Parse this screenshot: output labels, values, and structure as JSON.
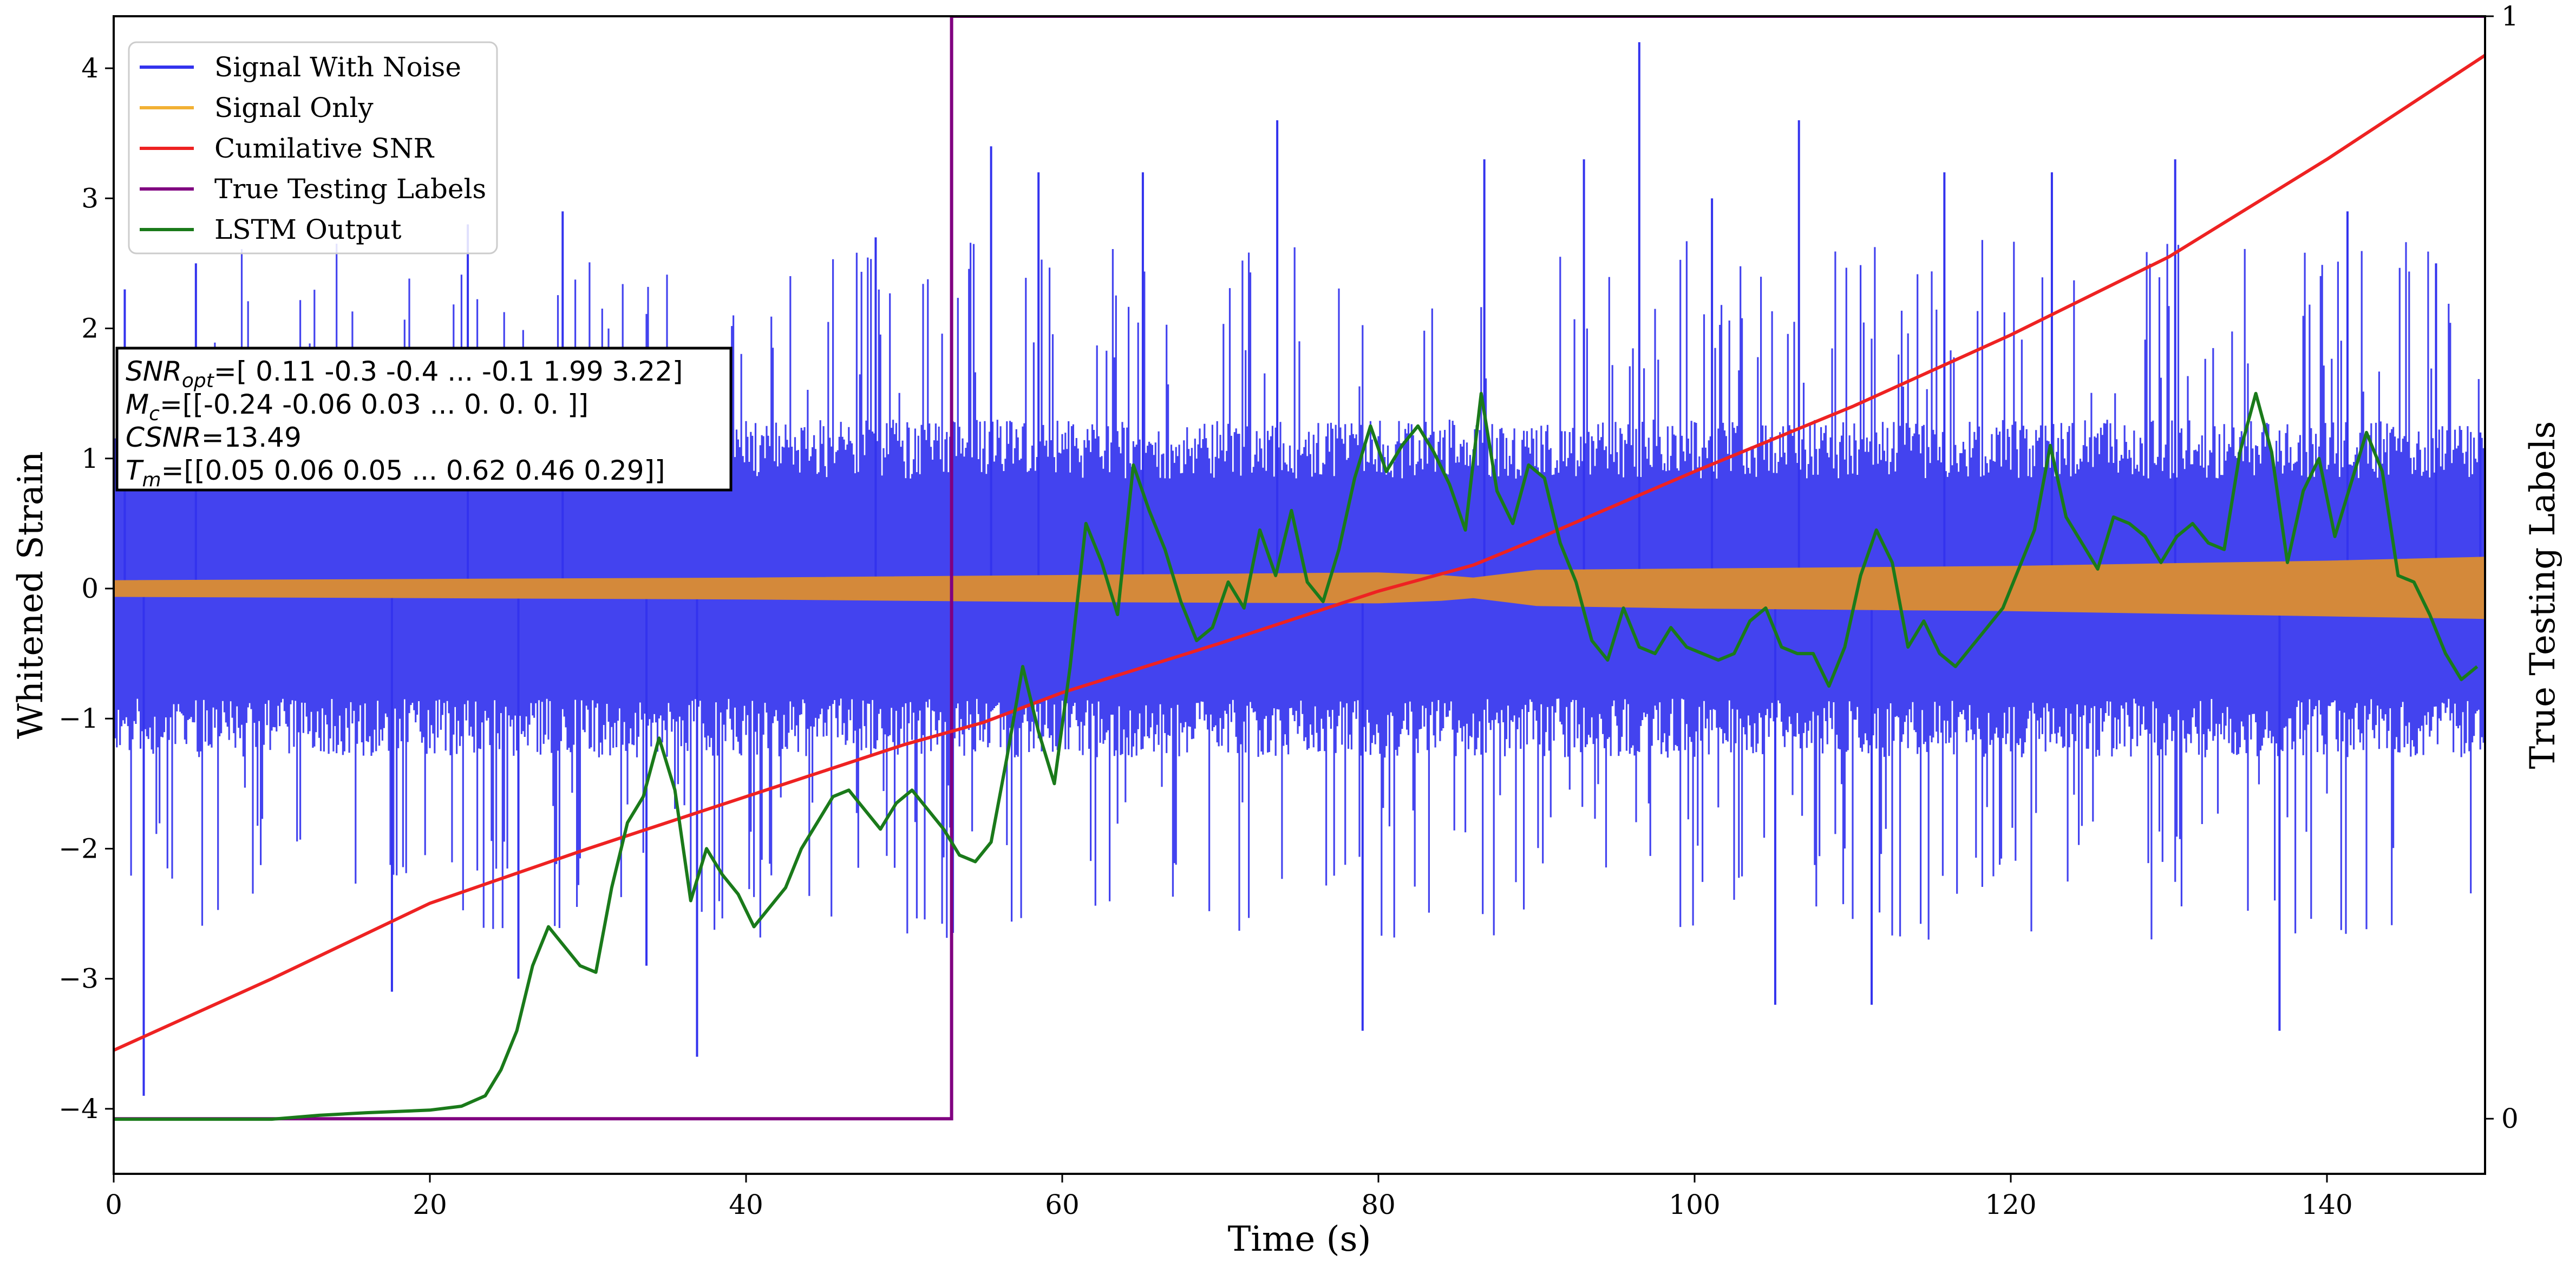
{
  "chart_data": {
    "type": "line",
    "xlabel": "Time (s)",
    "ylabel": "Whitened Strain",
    "y2label": "True Testing Labels",
    "xlim": [
      0,
      150
    ],
    "ylim": [
      -4.5,
      4.4
    ],
    "y2lim": [
      -0.05,
      1.0
    ],
    "xticks": [
      "0",
      "20",
      "40",
      "60",
      "80",
      "100",
      "120",
      "140"
    ],
    "yticks": [
      "−4",
      "−3",
      "−2",
      "−1",
      "0",
      "1",
      "2",
      "3",
      "4"
    ],
    "y2ticks": [
      "0",
      "1"
    ],
    "grid": false,
    "legend_position": "upper-left",
    "legend": [
      {
        "name": "Signal With Noise",
        "color": "#3333ee"
      },
      {
        "name": "Signal Only",
        "color": "#f2b134"
      },
      {
        "name": "Cumilative SNR",
        "color": "#ee2222"
      },
      {
        "name": "True Testing Labels",
        "color": "#800080"
      },
      {
        "name": "LSTM Output",
        "color": "#1a7a1a"
      }
    ],
    "series": [
      {
        "name": "Signal With Noise",
        "axis": "left",
        "style": "dense noise band",
        "typical_range": [
          -1.3,
          1.3
        ],
        "peak_points": [
          {
            "x": 0.7,
            "y": 2.3
          },
          {
            "x": 1.9,
            "y": -3.9
          },
          {
            "x": 5.2,
            "y": 2.5
          },
          {
            "x": 17.6,
            "y": -3.1
          },
          {
            "x": 22.4,
            "y": 2.8
          },
          {
            "x": 25.6,
            "y": -3.0
          },
          {
            "x": 28.4,
            "y": 2.9
          },
          {
            "x": 33.7,
            "y": -2.9
          },
          {
            "x": 36.9,
            "y": -3.6
          },
          {
            "x": 48.2,
            "y": 2.7
          },
          {
            "x": 55.5,
            "y": 3.4
          },
          {
            "x": 58.5,
            "y": 3.2
          },
          {
            "x": 65.1,
            "y": 3.2
          },
          {
            "x": 73.6,
            "y": 3.6
          },
          {
            "x": 79.0,
            "y": -3.4
          },
          {
            "x": 86.7,
            "y": 3.3
          },
          {
            "x": 93.0,
            "y": 3.3
          },
          {
            "x": 96.5,
            "y": 4.2
          },
          {
            "x": 101.1,
            "y": 3.0
          },
          {
            "x": 105.1,
            "y": -3.2
          },
          {
            "x": 106.6,
            "y": 3.6
          },
          {
            "x": 111.2,
            "y": -3.2
          },
          {
            "x": 115.8,
            "y": 3.2
          },
          {
            "x": 122.6,
            "y": 3.2
          },
          {
            "x": 130.4,
            "y": 3.3
          },
          {
            "x": 137.0,
            "y": -3.4
          },
          {
            "x": 141.3,
            "y": 2.9
          },
          {
            "x": 146.9,
            "y": 2.5
          },
          {
            "x": 149.7,
            "y": 1.2
          }
        ]
      },
      {
        "name": "Signal Only",
        "axis": "left",
        "style": "symmetric amplitude envelope",
        "x": [
          0,
          20,
          40,
          60,
          80,
          84,
          86,
          90,
          100,
          110,
          120,
          130,
          140,
          150
        ],
        "upper": [
          0.06,
          0.07,
          0.08,
          0.1,
          0.12,
          0.1,
          0.08,
          0.14,
          0.15,
          0.16,
          0.17,
          0.19,
          0.21,
          0.24
        ],
        "lower": [
          -0.06,
          -0.07,
          -0.08,
          -0.1,
          -0.11,
          -0.09,
          -0.07,
          -0.13,
          -0.15,
          -0.16,
          -0.17,
          -0.19,
          -0.21,
          -0.23
        ]
      },
      {
        "name": "Cumilative SNR",
        "axis": "left",
        "x": [
          0,
          10,
          20,
          30,
          40,
          50,
          55,
          60,
          70,
          80,
          86,
          90,
          100,
          110,
          120,
          130,
          140,
          150
        ],
        "values": [
          -3.55,
          -3.0,
          -2.42,
          -2.0,
          -1.6,
          -1.2,
          -1.03,
          -0.8,
          -0.42,
          -0.02,
          0.18,
          0.38,
          0.9,
          1.4,
          1.95,
          2.55,
          3.3,
          4.1
        ]
      },
      {
        "name": "True Testing Labels",
        "axis": "right",
        "x": [
          0,
          53.0,
          53.0,
          53.4,
          150
        ],
        "values": [
          0,
          0,
          1,
          1,
          1
        ]
      },
      {
        "name": "LSTM Output",
        "axis": "left",
        "x": [
          0,
          10,
          13,
          16,
          18,
          20,
          22,
          23.5,
          24.5,
          25.5,
          26.5,
          27.5,
          28.5,
          29.5,
          30.5,
          31.5,
          32.5,
          33.5,
          34.5,
          35.5,
          36.5,
          37.5,
          38.5,
          39.5,
          40.5,
          41.5,
          42.5,
          43.5,
          44.5,
          45.5,
          46.5,
          47.5,
          48.5,
          49.5,
          50.5,
          51.5,
          52.5,
          53.5,
          54.5,
          55.5,
          56.5,
          57.5,
          58.5,
          59.5,
          60.5,
          61.5,
          62.5,
          63.5,
          64.5,
          65.5,
          66.5,
          67.5,
          68.5,
          69.5,
          70.5,
          71.5,
          72.5,
          73.5,
          74.5,
          75.5,
          76.5,
          77.5,
          78.5,
          79.5,
          80.5,
          81.5,
          82.5,
          83.5,
          84.5,
          85.5,
          86.5,
          87.5,
          88.5,
          89.5,
          90.5,
          91.5,
          92.5,
          93.5,
          94.5,
          95.5,
          96.5,
          97.5,
          98.5,
          99.5,
          100.5,
          101.5,
          102.5,
          103.5,
          104.5,
          105.5,
          106.5,
          107.5,
          108.5,
          109.5,
          110.5,
          111.5,
          112.5,
          113.5,
          114.5,
          115.5,
          116.5,
          117.5,
          118.5,
          119.5,
          120.5,
          121.5,
          122.5,
          123.5,
          124.5,
          125.5,
          126.5,
          127.5,
          128.5,
          129.5,
          130.5,
          131.5,
          132.5,
          133.5,
          134.5,
          135.5,
          136.5,
          137.5,
          138.5,
          139.5,
          140.5,
          141.5,
          142.5,
          143.5,
          144.5,
          145.5,
          146.5,
          147.5,
          148.5,
          149.5
        ],
        "values": [
          -4.08,
          -4.08,
          -4.05,
          -4.03,
          -4.02,
          -4.01,
          -3.98,
          -3.9,
          -3.7,
          -3.4,
          -2.9,
          -2.6,
          -2.75,
          -2.9,
          -2.95,
          -2.3,
          -1.8,
          -1.6,
          -1.15,
          -1.55,
          -2.4,
          -2.0,
          -2.2,
          -2.35,
          -2.6,
          -2.45,
          -2.3,
          -2.0,
          -1.8,
          -1.6,
          -1.55,
          -1.7,
          -1.85,
          -1.65,
          -1.55,
          -1.7,
          -1.85,
          -2.05,
          -2.1,
          -1.95,
          -1.3,
          -0.6,
          -1.1,
          -1.5,
          -0.6,
          0.5,
          0.2,
          -0.2,
          0.95,
          0.6,
          0.3,
          -0.1,
          -0.4,
          -0.3,
          0.05,
          -0.15,
          0.45,
          0.1,
          0.6,
          0.05,
          -0.1,
          0.3,
          0.85,
          1.25,
          0.9,
          1.1,
          1.25,
          1.05,
          0.8,
          0.45,
          1.5,
          0.75,
          0.5,
          0.95,
          0.85,
          0.35,
          0.05,
          -0.4,
          -0.55,
          -0.15,
          -0.45,
          -0.5,
          -0.3,
          -0.45,
          -0.5,
          -0.55,
          -0.5,
          -0.25,
          -0.15,
          -0.45,
          -0.5,
          -0.5,
          -0.75,
          -0.45,
          0.1,
          0.45,
          0.2,
          -0.45,
          -0.25,
          -0.5,
          -0.6,
          -0.45,
          -0.3,
          -0.15,
          0.15,
          0.45,
          1.1,
          0.55,
          0.35,
          0.15,
          0.55,
          0.5,
          0.4,
          0.2,
          0.4,
          0.5,
          0.35,
          0.3,
          1.05,
          1.5,
          1.05,
          0.2,
          0.75,
          1.0,
          0.4,
          0.8,
          1.2,
          0.9,
          0.1,
          0.05,
          -0.2,
          -0.5,
          -0.7,
          -0.6
        ]
      }
    ],
    "annotations": [
      {
        "label": "SNR",
        "subscript": "opt",
        "text": "=[ 0.11 -0.3  -0.4  ... -0.1   1.99  3.22]"
      },
      {
        "label": "M",
        "subscript": "c",
        "text": "=[[-0.24 -0.06  0.03 ...  0.    0.    0.  ]]"
      },
      {
        "label": "CSNR",
        "subscript": "",
        "text": "=13.49"
      },
      {
        "label": "T",
        "subscript": "m",
        "text": "=[[0.05 0.06 0.05 ... 0.62 0.46 0.29]]"
      }
    ]
  }
}
